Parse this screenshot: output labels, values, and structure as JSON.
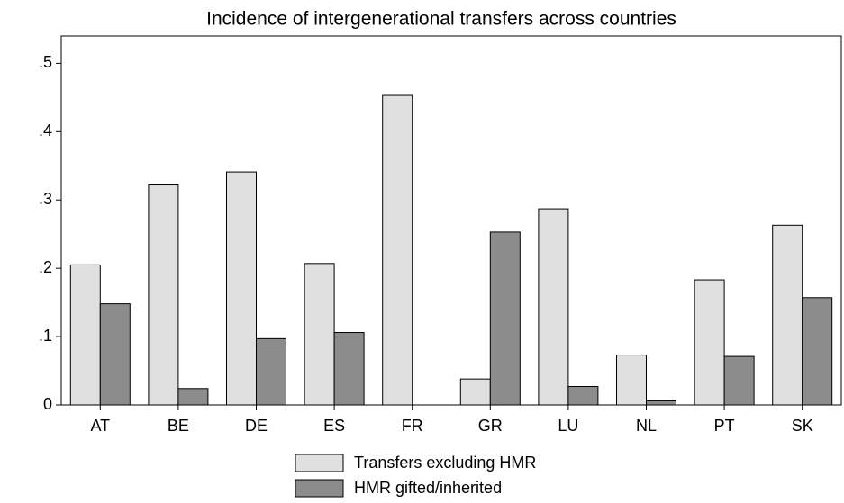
{
  "chart_data": {
    "type": "bar",
    "title": "Incidence of intergenerational transfers across countries",
    "categories": [
      "AT",
      "BE",
      "DE",
      "ES",
      "FR",
      "GR",
      "LU",
      "NL",
      "PT",
      "SK"
    ],
    "series": [
      {
        "name": "Transfers excluding HMR",
        "color": "#e0e0e0",
        "values": [
          0.205,
          0.322,
          0.341,
          0.207,
          0.453,
          0.038,
          0.287,
          0.073,
          0.183,
          0.263
        ]
      },
      {
        "name": "HMR gifted/inherited",
        "color": "#8c8c8c",
        "values": [
          0.148,
          0.024,
          0.097,
          0.106,
          null,
          0.253,
          0.027,
          0.006,
          0.071,
          0.157
        ]
      }
    ],
    "ylim": [
      0,
      0.54
    ],
    "yticks": [
      0,
      {
        "value": 0.1,
        "label": ".1"
      },
      {
        "value": 0.2,
        "label": ".2"
      },
      {
        "value": 0.3,
        "label": ".3"
      },
      {
        "value": 0.4,
        "label": ".4"
      },
      {
        "value": 0.5,
        "label": ".5"
      }
    ],
    "grid": false
  }
}
